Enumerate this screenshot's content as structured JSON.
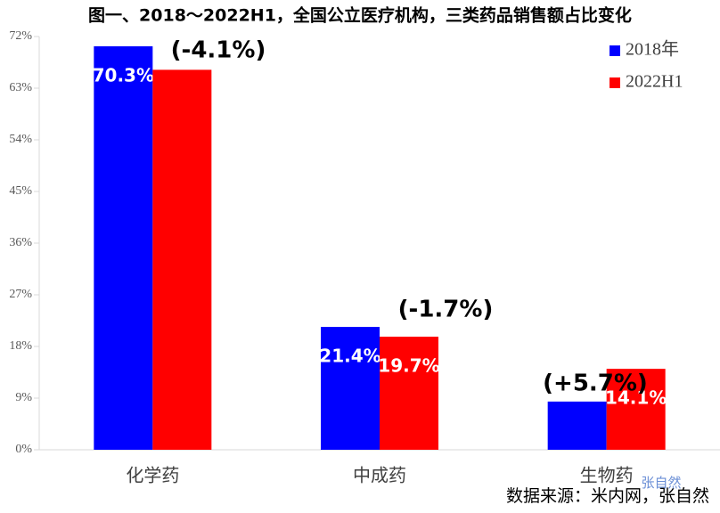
{
  "chart_data": {
    "type": "bar",
    "title": "图一、2018～2022H1，全国公立医疗机构，三类药品销售额占比变化",
    "categories": [
      "化学药",
      "中成药",
      "生物药"
    ],
    "series": [
      {
        "name": "2018年",
        "color": "#0000ff",
        "values": [
          70.3,
          21.4,
          8.4
        ],
        "value_labels": [
          "70.3%",
          "21.4%",
          null
        ]
      },
      {
        "name": "2022H1",
        "color": "#ff0000",
        "values": [
          66.2,
          19.7,
          14.1
        ],
        "value_labels": [
          null,
          "19.7%",
          "14.1%"
        ]
      }
    ],
    "annotations": [
      "(-4.1%)",
      "(-1.7%)",
      "(+5.7%)"
    ],
    "source": "数据来源：米内网，张自然",
    "watermark": "张自然",
    "ylim": [
      0,
      72
    ],
    "yticks": [
      {
        "value": 0,
        "label": "0%"
      },
      {
        "value": 9,
        "label": "9%"
      },
      {
        "value": 18,
        "label": "18%"
      },
      {
        "value": 27,
        "label": "27%"
      },
      {
        "value": 36,
        "label": "36%"
      },
      {
        "value": 45,
        "label": "45%"
      },
      {
        "value": 54,
        "label": "54%"
      },
      {
        "value": 63,
        "label": "63%"
      },
      {
        "value": 72,
        "label": "72%"
      }
    ],
    "legend": "top-right"
  }
}
